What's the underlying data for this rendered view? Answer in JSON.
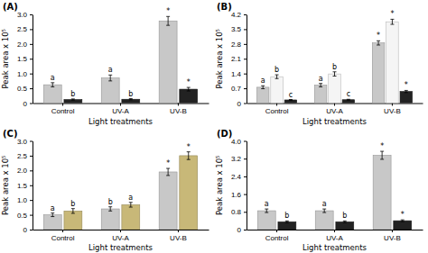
{
  "chart_data": [
    {
      "type": "bar",
      "title": "(A)",
      "xlabel": "Light treatments",
      "ylabel": "Peak area x 10⁵",
      "categories": [
        "Control",
        "UV-A",
        "UV-B"
      ],
      "series": [
        {
          "color": "#c8c8c8",
          "values": [
            0.62,
            0.85,
            2.78
          ],
          "errors": [
            0.07,
            0.1,
            0.15
          ],
          "annotations": [
            "a",
            "a",
            "*"
          ]
        },
        {
          "color": "#222222",
          "values": [
            0.12,
            0.13,
            0.47
          ],
          "errors": [
            0.02,
            0.02,
            0.06
          ],
          "annotations": [
            "b",
            "b",
            "*"
          ]
        }
      ],
      "ylim": [
        0,
        3.0
      ],
      "yticks": [
        0,
        0.5,
        {
          "value": 1.0,
          "label": "1.0"
        },
        1.5,
        {
          "value": 2.0,
          "label": "2.0"
        },
        2.5,
        {
          "value": 3.0,
          "label": "3.0"
        }
      ],
      "grid": false
    },
    {
      "type": "bar",
      "title": "(B)",
      "xlabel": "Light treatments",
      "ylabel": "Peak area x 10⁵",
      "categories": [
        "Control",
        "UV-A",
        "UV-B"
      ],
      "series": [
        {
          "color": "#c8c8c8",
          "values": [
            0.75,
            0.85,
            2.85
          ],
          "errors": [
            0.07,
            0.08,
            0.1
          ],
          "annotations": [
            "a",
            "a",
            "*"
          ]
        },
        {
          "color": "#f5f5f5",
          "values": [
            1.25,
            1.38,
            3.85
          ],
          "errors": [
            0.09,
            0.1,
            0.12
          ],
          "annotations": [
            "b",
            "b",
            "*"
          ]
        },
        {
          "color": "#222222",
          "values": [
            0.15,
            0.16,
            0.55
          ],
          "errors": [
            0.02,
            0.02,
            0.05
          ],
          "annotations": [
            "c",
            "c",
            "*"
          ]
        }
      ],
      "ylim": [
        0,
        4.2
      ],
      "yticks": [
        0,
        0.7,
        1.4,
        2.1,
        2.8,
        3.5,
        4.2
      ],
      "grid": false
    },
    {
      "type": "bar",
      "title": "(C)",
      "xlabel": "Light treatments",
      "ylabel": "Peak area x 10⁵",
      "categories": [
        "Control",
        "UV-A",
        "UV-B"
      ],
      "series": [
        {
          "color": "#c8c8c8",
          "values": [
            0.5,
            0.7,
            1.95
          ],
          "errors": [
            0.06,
            0.07,
            0.12
          ],
          "annotations": [
            "a",
            "b",
            "*"
          ]
        },
        {
          "color": "#c8b878",
          "values": [
            0.63,
            0.84,
            2.5
          ],
          "errors": [
            0.08,
            0.08,
            0.13
          ],
          "annotations": [
            "b",
            "a",
            "*"
          ]
        }
      ],
      "ylim": [
        0,
        3.0
      ],
      "yticks": [
        0,
        0.5,
        {
          "value": 1.0,
          "label": "1.0"
        },
        1.5,
        {
          "value": 2.0,
          "label": "2.0"
        },
        2.5,
        {
          "value": 3.0,
          "label": "3.0"
        }
      ],
      "grid": false
    },
    {
      "type": "bar",
      "title": "(D)",
      "xlabel": "Light treatments",
      "ylabel": "Peak area x 10⁵",
      "categories": [
        "Control",
        "UV-A",
        "UV-B"
      ],
      "series": [
        {
          "color": "#c8c8c8",
          "values": [
            0.85,
            0.85,
            3.35
          ],
          "errors": [
            0.08,
            0.08,
            0.18
          ],
          "annotations": [
            "a",
            "a",
            "*"
          ]
        },
        {
          "color": "#222222",
          "values": [
            0.35,
            0.35,
            0.4
          ],
          "errors": [
            0.04,
            0.04,
            0.04
          ],
          "annotations": [
            "b",
            "b",
            "*"
          ]
        }
      ],
      "ylim": [
        0,
        4.0
      ],
      "yticks": [
        0,
        0.8,
        1.6,
        2.4,
        3.2,
        {
          "value": 4.0,
          "label": "4.0"
        }
      ],
      "grid": false
    }
  ]
}
